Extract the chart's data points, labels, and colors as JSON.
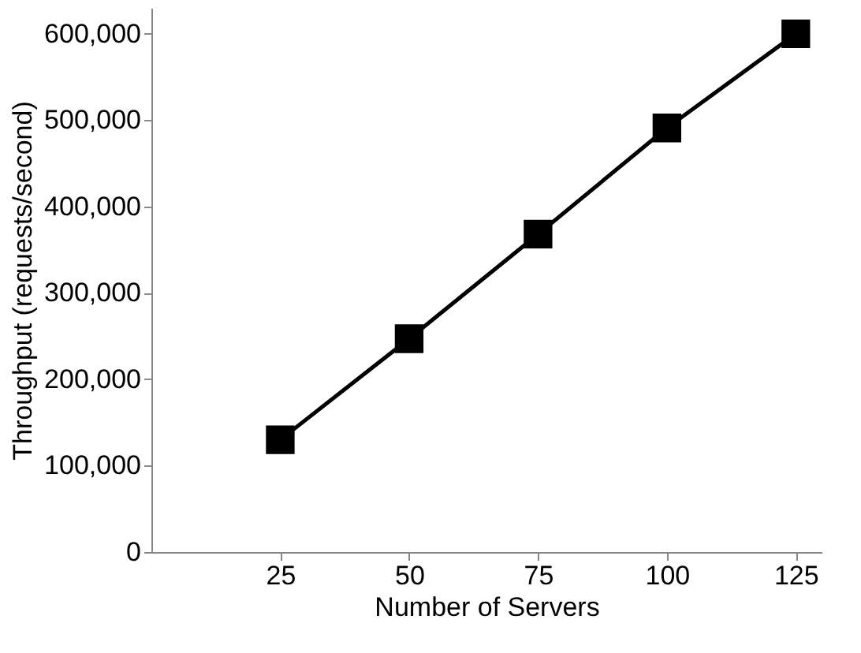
{
  "chart_data": {
    "type": "line",
    "xlabel": "Number of Servers",
    "ylabel": "Throughput (requests/second)",
    "x": [
      25,
      50,
      75,
      100,
      125
    ],
    "series": [
      {
        "color": "#000000",
        "values": [
          130000,
          247000,
          368000,
          491000,
          600000
        ]
      }
    ],
    "xlim": [
      0,
      130
    ],
    "xticks": [
      25,
      50,
      75,
      100,
      125
    ],
    "ylim": [
      0,
      630000
    ],
    "yticks": [
      0,
      {
        "value": 100000,
        "label": "100,000"
      },
      {
        "value": 200000,
        "label": "200,000"
      },
      {
        "value": 300000,
        "label": "300,000"
      },
      {
        "value": 400000,
        "label": "400,000"
      },
      {
        "value": 500000,
        "label": "500,000"
      },
      {
        "value": 600000,
        "label": "600,000"
      }
    ],
    "grid": false,
    "marker": "square",
    "line_style": "solid",
    "legend": false
  }
}
